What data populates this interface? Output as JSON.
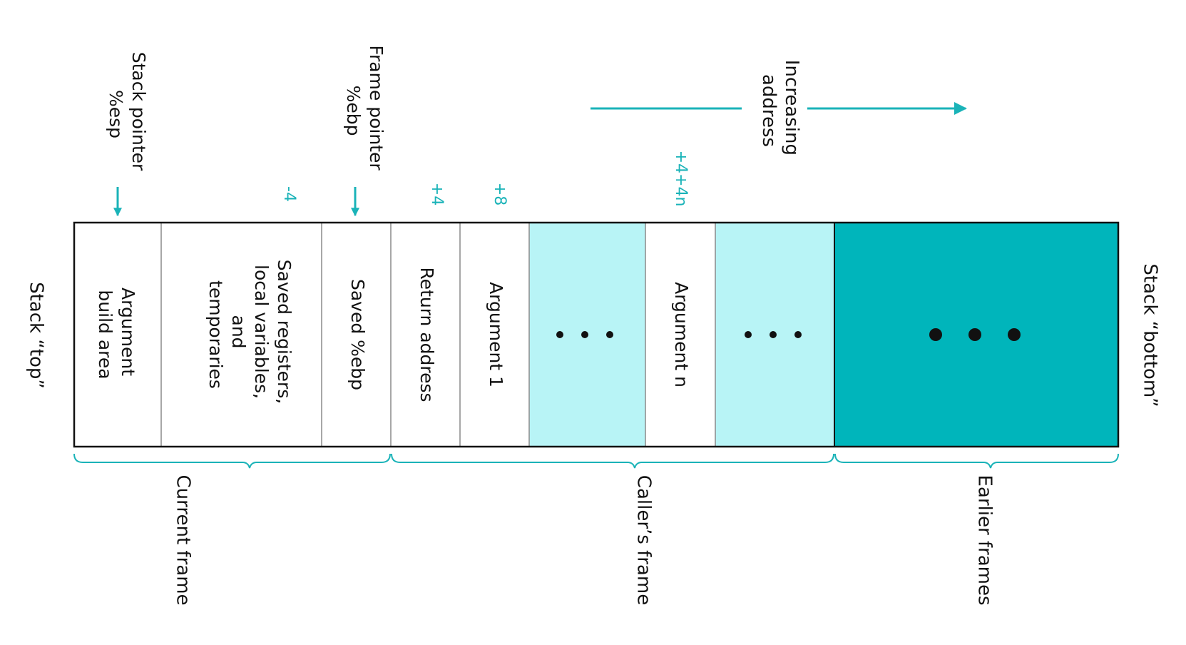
{
  "colors": {
    "accent": "#1ab3b8",
    "light_fill": "#b8f4f6",
    "dark_fill": "#00b5bb",
    "ink": "#111111",
    "divider": "#8a8a8a"
  },
  "stack_top_label": "Stack “top”",
  "stack_bottom_label": "Stack “bottom”",
  "pointers": {
    "stack_pointer": {
      "title": "Stack pointer",
      "register": "%esp"
    },
    "frame_pointer": {
      "title": "Frame pointer",
      "register": "%ebp"
    }
  },
  "offsets": {
    "minus4": "-4",
    "plus4": "+4",
    "plus8": "+8",
    "plus4_4n": "+4+4n"
  },
  "direction": {
    "label_line1": "Increasing",
    "label_line2": "address"
  },
  "cells": {
    "argument_build_area": [
      "Argument",
      "build area"
    ],
    "saved_registers": [
      "Saved registers,",
      "local variables,",
      "and",
      "temporaries"
    ],
    "saved_ebp": "Saved %ebp",
    "return_address": "Return address",
    "argument_1": "Argument 1",
    "ellipsis_1": "• • •",
    "argument_n": "Argument n",
    "ellipsis_2": "• • •",
    "ellipsis_earlier": "• • •"
  },
  "frames": {
    "current": "Current frame",
    "caller": "Caller’s frame",
    "earlier": "Earlier frames"
  }
}
